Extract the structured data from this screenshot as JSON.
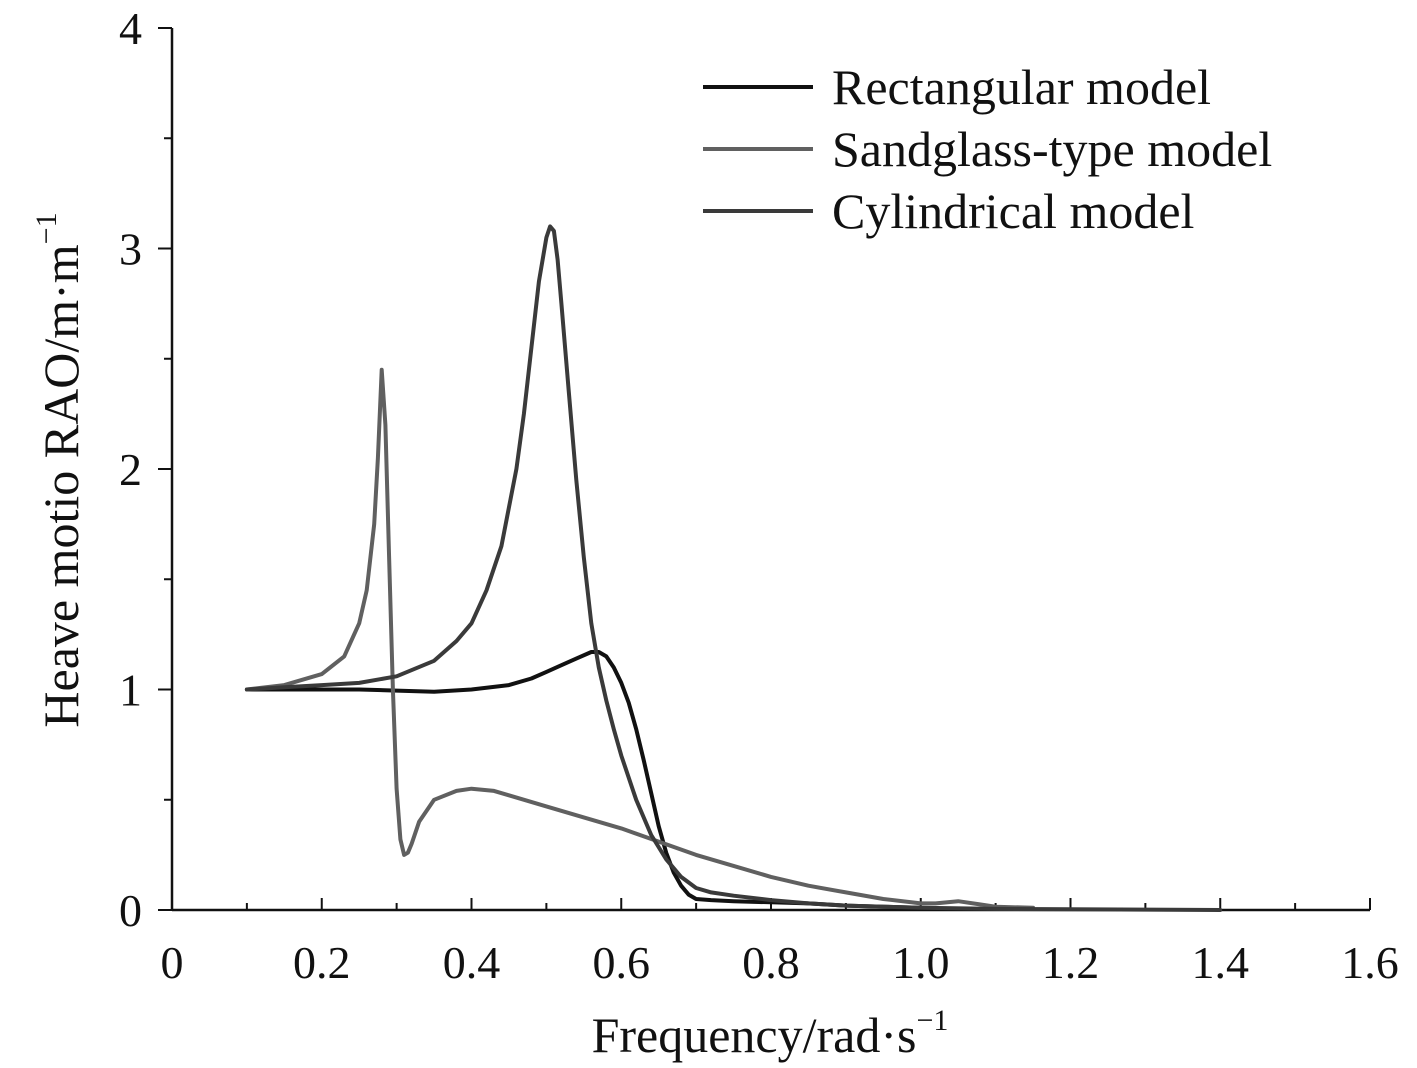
{
  "chart_data": {
    "type": "line",
    "title": "",
    "xlabel": "Frequency/rad·s",
    "xlabel_sup": "−1",
    "ylabel": "Heave motio RAO/m·m",
    "ylabel_sup": "−1",
    "xlim": [
      0,
      1.6
    ],
    "ylim": [
      0,
      4
    ],
    "x_ticks": [
      0,
      0.2,
      0.4,
      0.6,
      0.8,
      1.0,
      1.2,
      1.4,
      1.6
    ],
    "x_tick_labels": [
      "0",
      "0.2",
      "0.4",
      "0.6",
      "0.8",
      "1.0",
      "1.2",
      "1.4",
      "1.6"
    ],
    "y_ticks": [
      0,
      1,
      2,
      3,
      4
    ],
    "y_tick_labels": [
      "0",
      "1",
      "2",
      "3",
      "4"
    ],
    "x_minor_step": 0.1,
    "y_minor_step": 0.5,
    "grid": false,
    "legend_position": "top-right",
    "series": [
      {
        "name": "Rectangular model",
        "color": "#111111",
        "x": [
          0.1,
          0.15,
          0.2,
          0.25,
          0.3,
          0.35,
          0.4,
          0.45,
          0.48,
          0.5,
          0.52,
          0.54,
          0.56,
          0.57,
          0.58,
          0.59,
          0.6,
          0.61,
          0.62,
          0.63,
          0.64,
          0.65,
          0.66,
          0.67,
          0.68,
          0.69,
          0.7,
          0.72,
          0.75,
          0.8,
          0.85,
          0.9,
          0.95,
          1.0
        ],
        "values": [
          1.0,
          1.0,
          1.0,
          1.0,
          0.995,
          0.99,
          1.0,
          1.02,
          1.05,
          1.08,
          1.11,
          1.14,
          1.17,
          1.17,
          1.15,
          1.1,
          1.03,
          0.94,
          0.82,
          0.68,
          0.53,
          0.38,
          0.26,
          0.17,
          0.11,
          0.07,
          0.05,
          0.045,
          0.04,
          0.035,
          0.03,
          0.02,
          0.015,
          0.01
        ]
      },
      {
        "name": "Sandglass-type model",
        "color": "#606060",
        "x": [
          0.1,
          0.15,
          0.2,
          0.23,
          0.25,
          0.26,
          0.27,
          0.275,
          0.28,
          0.285,
          0.29,
          0.295,
          0.3,
          0.305,
          0.31,
          0.315,
          0.32,
          0.33,
          0.35,
          0.38,
          0.4,
          0.43,
          0.45,
          0.5,
          0.55,
          0.6,
          0.65,
          0.7,
          0.75,
          0.8,
          0.85,
          0.9,
          0.95,
          1.0,
          1.02,
          1.05,
          1.08,
          1.1,
          1.15
        ],
        "values": [
          1.0,
          1.02,
          1.07,
          1.15,
          1.3,
          1.45,
          1.75,
          2.05,
          2.45,
          2.2,
          1.6,
          1.0,
          0.55,
          0.32,
          0.25,
          0.26,
          0.3,
          0.4,
          0.5,
          0.54,
          0.55,
          0.54,
          0.52,
          0.47,
          0.42,
          0.37,
          0.31,
          0.25,
          0.2,
          0.15,
          0.11,
          0.08,
          0.05,
          0.03,
          0.03,
          0.04,
          0.025,
          0.015,
          0.01
        ]
      },
      {
        "name": "Cylindrical model",
        "color": "#3a3a3a",
        "x": [
          0.1,
          0.15,
          0.2,
          0.25,
          0.3,
          0.35,
          0.38,
          0.4,
          0.42,
          0.44,
          0.46,
          0.47,
          0.48,
          0.49,
          0.5,
          0.505,
          0.51,
          0.515,
          0.52,
          0.53,
          0.54,
          0.55,
          0.56,
          0.57,
          0.58,
          0.59,
          0.6,
          0.62,
          0.64,
          0.66,
          0.68,
          0.7,
          0.72,
          0.75,
          0.8,
          0.85,
          0.9,
          1.0,
          1.1,
          1.2,
          1.3,
          1.4
        ],
        "values": [
          1.0,
          1.01,
          1.02,
          1.03,
          1.06,
          1.13,
          1.22,
          1.3,
          1.45,
          1.65,
          2.0,
          2.25,
          2.55,
          2.85,
          3.05,
          3.1,
          3.08,
          2.95,
          2.75,
          2.35,
          1.95,
          1.6,
          1.3,
          1.1,
          0.95,
          0.82,
          0.7,
          0.5,
          0.34,
          0.23,
          0.15,
          0.1,
          0.08,
          0.065,
          0.045,
          0.03,
          0.02,
          0.01,
          0.005,
          0.003,
          0.002,
          0.0
        ]
      }
    ]
  }
}
